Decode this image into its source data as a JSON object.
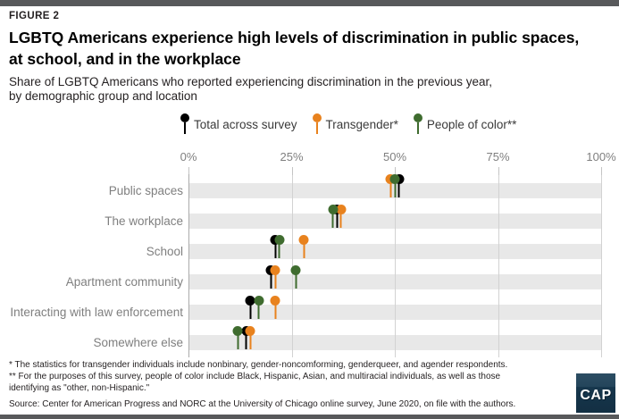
{
  "header": {
    "figure_label": "FIGURE 2",
    "title": "LGBTQ Americans experience high levels of discrimination in public spaces,\nat school, and in the workplace",
    "subtitle": "Share of LGBTQ Americans who reported experiencing discrimination in the previous year,\nby demographic group and location"
  },
  "chart_data": {
    "type": "lollipop-dot-plot",
    "title": "",
    "xlabel": "",
    "ylabel": "",
    "categories": [
      "Public spaces",
      "The workplace",
      "School",
      "Apartment community",
      "Interacting with law enforcement",
      "Somewhere else"
    ],
    "series": [
      {
        "name": "Total across survey",
        "color": "#000000",
        "values": [
          51,
          36,
          21,
          20,
          15,
          14
        ]
      },
      {
        "name": "Transgender*",
        "color": "#e8821e",
        "values": [
          49,
          37,
          28,
          21,
          21,
          15
        ]
      },
      {
        "name": "People of color**",
        "color": "#3f6c2f",
        "values": [
          50,
          35,
          22,
          26,
          17,
          12
        ]
      }
    ],
    "x_axis": {
      "ticks": [
        "0%",
        "25%",
        "50%",
        "75%",
        "100%"
      ],
      "tick_values": [
        0,
        25,
        50,
        75,
        100
      ],
      "min": 0,
      "max": 100
    },
    "legend_position": "top",
    "row_stripes": true,
    "stripe_color": "#e8e8e8"
  },
  "footnotes": {
    "note1": "* The statistics for transgender individuals include nonbinary, gender-noncomforming, genderqueer, and agender respondents.",
    "note2": "** For the purposes of this survey, people of color include Black, Hispanic, Asian, and multiracial individuals, as well as those identifying as \"other, non-Hispanic.\"",
    "source": "Source: Center for American Progress and NORC at the University of Chicago online survey, June 2020, on file with the authors."
  },
  "logo": {
    "text": "CAP",
    "background": "#16364c"
  }
}
